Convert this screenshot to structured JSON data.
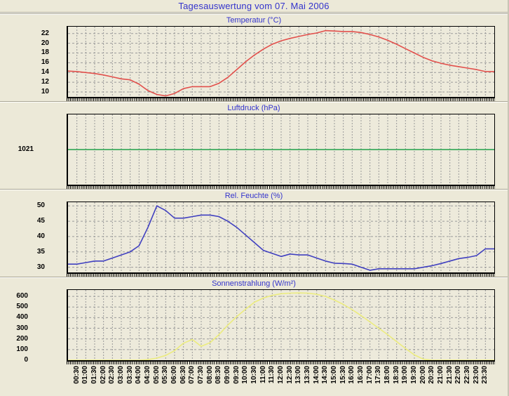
{
  "page": {
    "title": "Tagesauswertung vom 07. Mai 2006"
  },
  "colors": {
    "background": "#ECE9D8",
    "plot_background": "#EDEADB",
    "title_text": "#3333CC",
    "grid": "#999999",
    "axis": "#000000",
    "temperature_line": "#E2504C",
    "pressure_line": "#22A04A",
    "humidity_line": "#4040C0",
    "radiation_line": "#ECEC7E"
  },
  "x_axis": {
    "start": "00:00",
    "end": "24:00",
    "step_minutes": 30,
    "labels": [
      "00:30",
      "01:00",
      "01:30",
      "02:00",
      "02:30",
      "03:00",
      "03:30",
      "04:00",
      "04:30",
      "05:00",
      "05:30",
      "06:00",
      "06:30",
      "07:00",
      "07:30",
      "08:00",
      "08:30",
      "09:00",
      "09:30",
      "10:00",
      "10:30",
      "11:00",
      "11:30",
      "12:00",
      "12:30",
      "13:00",
      "13:30",
      "14:00",
      "14:30",
      "15:00",
      "15:30",
      "16:00",
      "16:30",
      "17:00",
      "17:30",
      "18:00",
      "18:30",
      "19:00",
      "19:30",
      "20:00",
      "20:30",
      "21:00",
      "21:30",
      "22:00",
      "22:30",
      "23:00",
      "23:30"
    ]
  },
  "chart_data": [
    {
      "type": "line",
      "title": "Temperatur (°C)",
      "series_color": "#E2504C",
      "ylim": [
        9.0,
        23.4
      ],
      "yticks": [
        10,
        12,
        14,
        16,
        18,
        20,
        22
      ],
      "grid": true,
      "legend_position": "none",
      "values": [
        14.3,
        14.2,
        14.0,
        13.8,
        13.5,
        13.1,
        12.7,
        12.5,
        11.6,
        10.3,
        9.5,
        9.2,
        9.7,
        10.7,
        11.1,
        11.1,
        11.1,
        11.8,
        13.0,
        14.6,
        16.2,
        17.6,
        18.8,
        19.8,
        20.5,
        21.0,
        21.4,
        21.8,
        22.1,
        22.6,
        22.5,
        22.4,
        22.4,
        22.2,
        21.8,
        21.3,
        20.6,
        19.8,
        18.9,
        18.0,
        17.1,
        16.4,
        15.9,
        15.5,
        15.2,
        14.9,
        14.6,
        14.2
      ]
    },
    {
      "type": "line",
      "title": "Luftdruck (hPa)",
      "series_color": "#22A04A",
      "ylim": [
        1014,
        1028
      ],
      "yticks": [
        1021
      ],
      "grid": false,
      "legend_position": "none",
      "values": [
        1021,
        1021,
        1021,
        1021,
        1021,
        1021,
        1021,
        1021,
        1021,
        1021,
        1021,
        1021,
        1021,
        1021,
        1021,
        1021,
        1021,
        1021,
        1021,
        1021,
        1021,
        1021,
        1021,
        1021,
        1021,
        1021,
        1021,
        1021,
        1021,
        1021,
        1021,
        1021,
        1021,
        1021,
        1021,
        1021,
        1021,
        1021,
        1021,
        1021,
        1021,
        1021,
        1021,
        1021,
        1021,
        1021,
        1021,
        1021
      ]
    },
    {
      "type": "line",
      "title": "Rel. Feuchte (%)",
      "series_color": "#4040C0",
      "ylim": [
        28.3,
        51.2
      ],
      "yticks": [
        30,
        35,
        40,
        45,
        50
      ],
      "grid": true,
      "legend_position": "none",
      "values": [
        31,
        31,
        31.5,
        32,
        32,
        33,
        34,
        35,
        37,
        43,
        50,
        48.5,
        46,
        46,
        46.5,
        47,
        47,
        46.5,
        45,
        43,
        40.5,
        38,
        35.5,
        34.5,
        33.5,
        34.3,
        34,
        34,
        33,
        32,
        31.3,
        31.2,
        31,
        30,
        29,
        29.5,
        29.5,
        29.5,
        29.5,
        29.5,
        30,
        30.5,
        31.2,
        32,
        32.8,
        33.2,
        33.8,
        36
      ]
    },
    {
      "type": "line",
      "title": "Sonnenstrahlung (W/m²)",
      "series_color": "#ECEC7E",
      "ylim": [
        0,
        660
      ],
      "yticks": [
        0,
        100,
        200,
        300,
        400,
        500,
        600
      ],
      "grid": true,
      "legend_position": "none",
      "values": [
        0,
        0,
        0,
        0,
        0,
        0,
        0,
        0,
        0,
        5,
        20,
        45,
        90,
        160,
        195,
        130,
        165,
        240,
        330,
        410,
        480,
        545,
        585,
        610,
        625,
        630,
        632,
        630,
        620,
        600,
        565,
        525,
        475,
        420,
        360,
        300,
        240,
        175,
        110,
        50,
        10,
        0,
        0,
        0,
        0,
        0,
        0,
        0
      ]
    }
  ]
}
